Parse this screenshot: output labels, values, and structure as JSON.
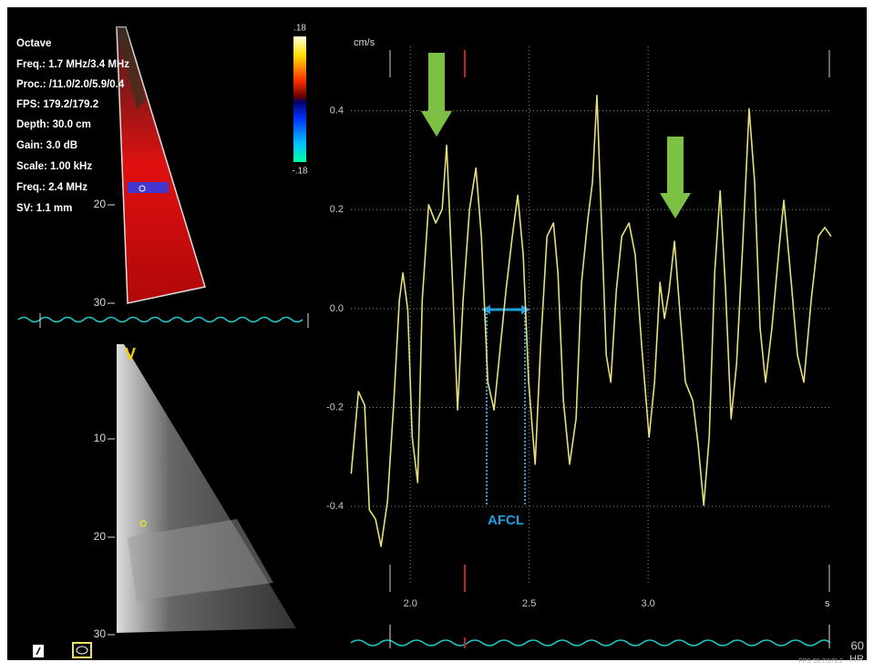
{
  "chart_data": {
    "type": "line",
    "y_unit": "cm/s",
    "x_unit": "s",
    "annotation": "AFCL",
    "color": "#e6e07a",
    "x": [
      1.751,
      1.782,
      1.808,
      1.828,
      1.854,
      1.877,
      1.904,
      1.931,
      1.954,
      1.969,
      1.989,
      2.008,
      2.031,
      2.05,
      2.077,
      2.107,
      2.134,
      2.153,
      2.176,
      2.199,
      2.222,
      2.249,
      2.276,
      2.299,
      2.326,
      2.352,
      2.375,
      2.402,
      2.429,
      2.452,
      2.475,
      2.498,
      2.525,
      2.548,
      2.575,
      2.602,
      2.621,
      2.644,
      2.67,
      2.697,
      2.72,
      2.747,
      2.766,
      2.785,
      2.805,
      2.824,
      2.843,
      2.866,
      2.889,
      2.92,
      2.946,
      2.973,
      3.004,
      3.027,
      3.05,
      3.069,
      3.088,
      3.111,
      3.13,
      3.157,
      3.188,
      3.211,
      3.234,
      3.257,
      3.28,
      3.303,
      3.326,
      3.349,
      3.372,
      3.398,
      3.425,
      3.448,
      3.471,
      3.494,
      3.521,
      3.552,
      3.571,
      3.602,
      3.628,
      3.655,
      3.686,
      3.716,
      3.743,
      3.77
    ],
    "values": [
      -0.334,
      -0.168,
      -0.195,
      -0.407,
      -0.426,
      -0.481,
      -0.389,
      -0.186,
      0.017,
      0.072,
      -0.002,
      -0.26,
      -0.352,
      0.017,
      0.21,
      0.173,
      0.201,
      0.33,
      0.072,
      -0.205,
      0.017,
      0.201,
      0.284,
      0.146,
      -0.149,
      -0.205,
      -0.094,
      0.035,
      0.146,
      0.229,
      0.109,
      -0.149,
      -0.315,
      -0.076,
      0.146,
      0.173,
      0.072,
      -0.186,
      -0.315,
      -0.223,
      0.053,
      0.182,
      0.256,
      0.431,
      0.164,
      -0.094,
      -0.149,
      0.035,
      0.146,
      0.173,
      0.109,
      -0.076,
      -0.26,
      -0.149,
      0.053,
      -0.02,
      0.035,
      0.136,
      0.017,
      -0.149,
      -0.186,
      -0.278,
      -0.398,
      -0.26,
      0.072,
      0.238,
      0.035,
      -0.223,
      -0.112,
      0.127,
      0.404,
      0.256,
      -0.039,
      -0.149,
      -0.039,
      0.127,
      0.219,
      0.053,
      -0.094,
      -0.149,
      0.017,
      0.146,
      0.164,
      0.146
    ],
    "xlim": [
      1.75,
      3.77
    ],
    "ylim": [
      -0.56,
      0.53
    ],
    "xticks": [
      {
        "value": 2,
        "label": "2.0"
      },
      2.5,
      {
        "value": 3,
        "label": "3.0"
      }
    ],
    "yticks": [
      0.4,
      0.2,
      {
        "value": 0,
        "label": "0.0"
      },
      -0.2,
      -0.4
    ],
    "grid": true
  },
  "panel": {
    "settings": [
      "Octave",
      "Freq.: 1.7 MHz/3.4 MHz",
      "Proc.: /11.0/2.0/5.9/0.4",
      "FPS: 179.2/179.2",
      "Depth: 30.0 cm",
      "Gain: 3.0 dB",
      "Scale: 1.00 kHz",
      "Freq.: 2.4 MHz",
      "SV: 1.1 mm"
    ],
    "colorbar_top": ".18",
    "colorbar_bottom": "-.18",
    "upper_depth": [
      "20",
      "30"
    ],
    "lower_depth": [
      "10",
      "20",
      "30"
    ],
    "view_label": "V",
    "hr_value": "60",
    "hr_label": "HR",
    "fps": "FPS 59.7/179.2"
  }
}
